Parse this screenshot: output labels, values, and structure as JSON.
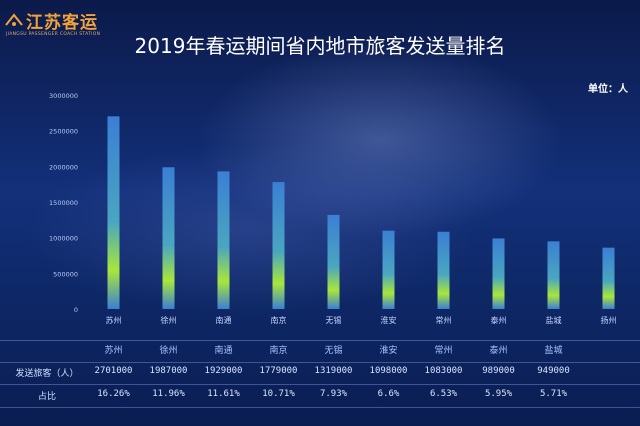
{
  "logo": {
    "name": "江苏客运",
    "subtitle": "JIANGSU PASSENGER COACH STATION"
  },
  "unit_label": "单位：人",
  "chart_data": {
    "type": "bar",
    "title": "2019年春运期间省内地市旅客发送量排名",
    "categories": [
      "苏州",
      "徐州",
      "南通",
      "南京",
      "无锡",
      "淮安",
      "常州",
      "泰州",
      "盐城",
      "扬州"
    ],
    "values": [
      2701000,
      1987000,
      1929000,
      1779000,
      1319000,
      1098000,
      1083000,
      989000,
      949000,
      860000
    ],
    "yticks": [
      "0",
      "500000",
      "1000000",
      "1500000",
      "2000000",
      "2500000",
      "3000000"
    ],
    "ylim": [
      0,
      3000000
    ],
    "grid": false,
    "colors": {
      "bar_top": "#3b7fd4",
      "bar_glow": "#a8e63a"
    }
  },
  "table": {
    "row_passengers_label": "发送旅客（人）",
    "row_share_label": "占比",
    "headers": [
      "苏州",
      "徐州",
      "南通",
      "南京",
      "无锡",
      "淮安",
      "常州",
      "泰州",
      "盐城"
    ],
    "passengers": [
      "2701000",
      "1987000",
      "1929000",
      "1779000",
      "1319000",
      "1098000",
      "1083000",
      "989000",
      "949000"
    ],
    "shares": [
      "16.26%",
      "11.96%",
      "11.61%",
      "10.71%",
      "7.93%",
      "6.6%",
      "6.53%",
      "5.95%",
      "5.71%"
    ]
  }
}
